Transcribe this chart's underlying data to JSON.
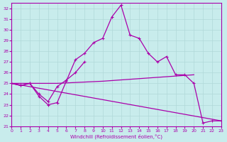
{
  "xlabel": "Windchill (Refroidissement éolien,°C)",
  "xlim": [
    0,
    23
  ],
  "ylim": [
    21,
    32.5
  ],
  "yticks": [
    21,
    22,
    23,
    24,
    25,
    26,
    27,
    28,
    29,
    30,
    31,
    32
  ],
  "xticks": [
    0,
    1,
    2,
    3,
    4,
    5,
    6,
    7,
    8,
    9,
    10,
    11,
    12,
    13,
    14,
    15,
    16,
    17,
    18,
    19,
    20,
    21,
    22,
    23
  ],
  "bg_color": "#c8ecec",
  "grid_color": "#b0d8d8",
  "line_color": "#aa00aa",
  "series": [
    {
      "x": [
        0,
        1,
        2,
        3,
        4,
        5,
        6,
        7,
        8,
        9,
        10,
        11,
        12,
        13,
        14,
        15,
        16,
        17,
        18,
        19,
        20,
        21,
        22,
        23
      ],
      "y": [
        25.0,
        24.8,
        25.0,
        23.8,
        23.0,
        23.2,
        25.2,
        27.2,
        27.8,
        28.8,
        29.2,
        31.2,
        32.3,
        29.5,
        29.2,
        27.8,
        27.0,
        27.5,
        25.8,
        25.8,
        25.0,
        21.3,
        21.5,
        21.5
      ],
      "marker": "+"
    },
    {
      "x": [
        0,
        1,
        2,
        3,
        4,
        5,
        6,
        7,
        8
      ],
      "y": [
        25.0,
        24.8,
        25.0,
        24.0,
        23.3,
        24.7,
        25.3,
        26.0,
        27.0
      ],
      "marker": "+"
    },
    {
      "x": [
        0,
        23
      ],
      "y": [
        25.0,
        21.5
      ],
      "marker": null
    },
    {
      "x": [
        0,
        5,
        10,
        15,
        20
      ],
      "y": [
        25.0,
        25.0,
        25.2,
        25.5,
        25.8
      ],
      "marker": null
    }
  ]
}
